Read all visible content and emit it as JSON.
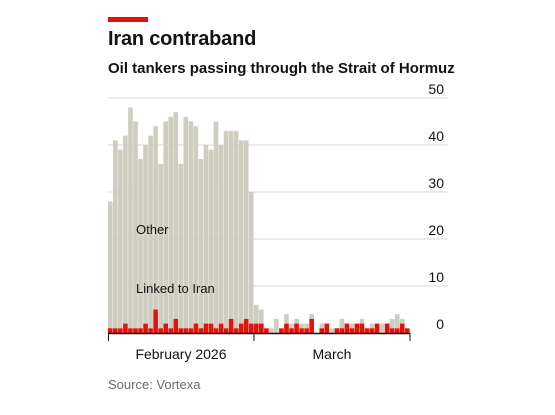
{
  "header": {
    "title": "Iran contraband",
    "subtitle": "Oil tankers passing through the Strait of Hormuz"
  },
  "footer": {
    "source": "Source: Vortexa"
  },
  "colors": {
    "accent": "#e3120b",
    "other": "#cfcdc0",
    "linked": "#e3120b",
    "grid": "#d6d6d6",
    "axis": "#121212"
  },
  "chart_data": {
    "type": "bar",
    "stacked": true,
    "title": "Oil tankers passing through the Strait of Hormuz",
    "xlabel": "",
    "ylabel": "",
    "ylim": [
      0,
      50
    ],
    "yticks": [
      0,
      10,
      20,
      30,
      40,
      50
    ],
    "y_axis_position": "right",
    "grid": true,
    "x_tick_labels": [
      "February 2026",
      "March"
    ],
    "annotations": [
      "Other",
      "Linked to Iran"
    ],
    "series": [
      {
        "name": "Linked to Iran",
        "values": [
          1,
          1,
          1,
          2,
          1,
          1,
          1,
          2,
          1,
          5,
          1,
          2,
          1,
          3,
          1,
          1,
          1,
          2,
          1,
          2,
          2,
          1,
          2,
          1,
          3,
          1,
          2,
          3,
          2,
          2,
          2,
          1,
          0,
          0,
          1,
          2,
          1,
          2,
          1,
          1,
          3,
          0,
          1,
          2,
          0,
          1,
          1,
          2,
          1,
          2,
          2,
          1,
          1,
          2,
          0,
          2,
          1,
          1,
          2,
          1
        ]
      },
      {
        "name": "Other",
        "values": [
          27,
          40,
          38,
          40,
          47,
          44,
          36,
          38,
          41,
          39,
          35,
          43,
          45,
          44,
          35,
          45,
          44,
          42,
          36,
          38,
          37,
          44,
          38,
          42,
          40,
          42,
          39,
          38,
          28,
          4,
          3,
          0,
          1,
          3,
          0,
          2,
          1,
          1,
          1,
          1,
          1,
          0,
          1,
          0,
          1,
          0,
          2,
          0,
          1,
          0,
          1,
          0,
          1,
          0,
          2,
          0,
          2,
          3,
          1,
          0
        ]
      }
    ]
  }
}
